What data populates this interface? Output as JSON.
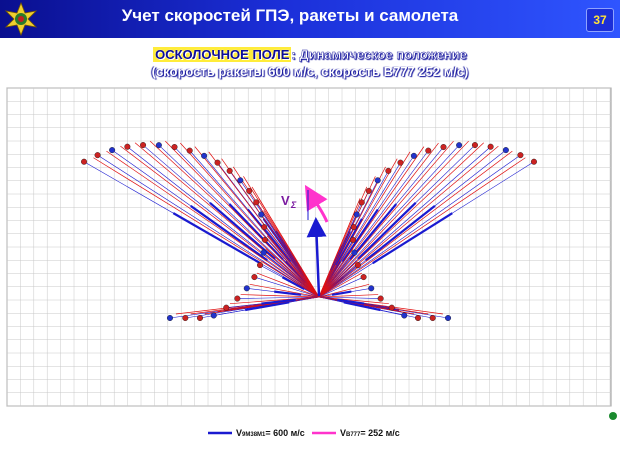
{
  "header": {
    "title": "Учет скоростей ГПЭ, ракеты и самолета",
    "page_number": "37"
  },
  "subtitle": {
    "highlight": "ОСКОЛОЧНОЕ ПОЛЕ",
    "line1_rest": ": Динамическое положение",
    "line2": "(скорость ракеты 600 м/с, скорость В777 252 м/с)"
  },
  "diagram": {
    "vector_label": "V",
    "vector_label_sub": "Σ",
    "colors": {
      "blue": "#1a1ad0",
      "red": "#e01010",
      "magenta": "#ff33cc",
      "grid": "#c8c8c8"
    }
  },
  "legend": {
    "missile_prefix": "V",
    "missile_sub": "9М38М1",
    "missile_value": "= 600 м/с",
    "aircraft_prefix": "V",
    "aircraft_sub": "В777",
    "aircraft_value": "= 252 м/с"
  }
}
